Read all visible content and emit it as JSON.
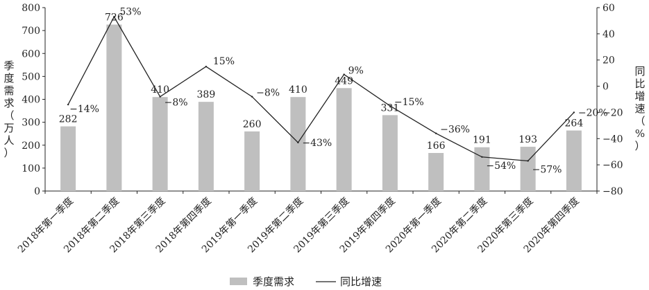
{
  "chart_data": {
    "type": "bar",
    "categories": [
      "2018年第一季度",
      "2018年第二季度",
      "2018年第三季度",
      "2018年第四季度",
      "2019年第一季度",
      "2019年第二季度",
      "2019年第三季度",
      "2019年第四季度",
      "2020年第一季度",
      "2020年第二季度",
      "2020年第三季度",
      "2020年第四季度"
    ],
    "series": [
      {
        "name": "季度需求",
        "type": "bar",
        "axis": "left",
        "color": "#bfbfbf",
        "values": [
          282,
          726,
          410,
          389,
          260,
          410,
          449,
          331,
          166,
          191,
          193,
          264
        ],
        "labels": [
          "282",
          "726",
          "410",
          "389",
          "260",
          "410",
          "449",
          "331",
          "166",
          "191",
          "193",
          "264"
        ]
      },
      {
        "name": "同比增速",
        "type": "line",
        "axis": "right",
        "color": "#222222",
        "values": [
          -14,
          53,
          -8,
          15,
          -8,
          -43,
          9,
          -15,
          -36,
          -54,
          -57,
          -20
        ],
        "labels": [
          "−14%",
          "53%",
          "−8%",
          "15%",
          "−8%",
          "−43%",
          "9%",
          "−15%",
          "−36%",
          "−54%",
          "−57%",
          "−20%"
        ]
      }
    ],
    "ylabel": "季度需求（万人）",
    "y2label": "同比增速（%）",
    "ylim": [
      0,
      800
    ],
    "y2lim": [
      -80,
      60
    ],
    "yticks": [
      0,
      100,
      200,
      300,
      400,
      500,
      600,
      700,
      800
    ],
    "y2ticks": [
      -80,
      -60,
      -40,
      -20,
      0,
      20,
      40,
      60
    ],
    "y2tick_labels": [
      "−80",
      "−60",
      "−40",
      "−20",
      "0",
      "20",
      "40",
      "60"
    ],
    "grid": false,
    "legend": "bottom-center"
  }
}
